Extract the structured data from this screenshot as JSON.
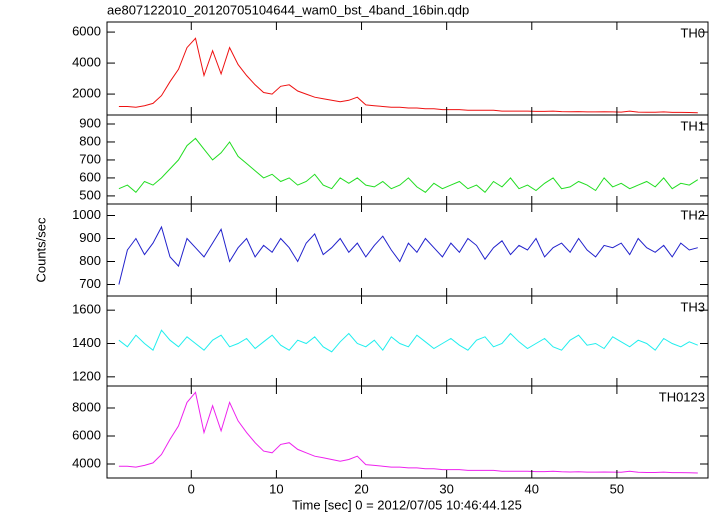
{
  "chart_data": {
    "type": "line",
    "title": "ae807122010_20120705104644_wam0_bst_4band_16bin.qdp",
    "xlabel": "Time [sec] 0 = 2012/07/05 10:46:44.125",
    "ylabel": "Counts/sec",
    "xlim": [
      -9.9,
      60.7
    ],
    "xticks": [
      0,
      10,
      20,
      30,
      40,
      50
    ],
    "x": [
      -8.5,
      -7.5,
      -6.5,
      -5.5,
      -4.5,
      -3.5,
      -2.5,
      -1.5,
      -0.5,
      0.5,
      1.5,
      2.5,
      3.5,
      4.5,
      5.5,
      6.5,
      7.5,
      8.5,
      9.5,
      10.5,
      11.5,
      12.5,
      13.5,
      14.5,
      15.5,
      16.5,
      17.5,
      18.5,
      19.5,
      20.5,
      21.5,
      22.5,
      23.5,
      24.5,
      25.5,
      26.5,
      27.5,
      28.5,
      29.5,
      30.5,
      31.5,
      32.5,
      33.5,
      34.5,
      35.5,
      36.5,
      37.5,
      38.5,
      39.5,
      40.5,
      41.5,
      42.5,
      43.5,
      44.5,
      45.5,
      46.5,
      47.5,
      48.5,
      49.5,
      50.5,
      51.5,
      52.5,
      53.5,
      54.5,
      55.5,
      56.5,
      57.5,
      58.5,
      59.5
    ],
    "series": [
      {
        "name": "TH0",
        "color": "#ee1111",
        "ylim": [
          650,
          6650
        ],
        "yticks": [
          2000,
          4000,
          6000
        ],
        "values": [
          1200,
          1200,
          1150,
          1250,
          1400,
          1900,
          2800,
          3600,
          5000,
          5600,
          3200,
          4800,
          3300,
          5000,
          3900,
          3200,
          2600,
          2100,
          2000,
          2500,
          2600,
          2200,
          2000,
          1800,
          1700,
          1600,
          1500,
          1600,
          1800,
          1300,
          1250,
          1200,
          1150,
          1150,
          1100,
          1100,
          1050,
          1050,
          1000,
          1000,
          1000,
          950,
          950,
          950,
          950,
          900,
          900,
          900,
          900,
          880,
          880,
          900,
          870,
          860,
          870,
          850,
          850,
          860,
          850,
          840,
          900,
          840,
          830,
          830,
          850,
          820,
          820,
          810,
          800
        ]
      },
      {
        "name": "TH1",
        "color": "#22dd22",
        "ylim": [
          455,
          950
        ],
        "yticks": [
          500,
          600,
          700,
          800,
          900
        ],
        "values": [
          540,
          560,
          520,
          580,
          560,
          600,
          650,
          700,
          780,
          820,
          760,
          700,
          740,
          800,
          720,
          680,
          640,
          600,
          620,
          580,
          600,
          560,
          580,
          620,
          560,
          540,
          600,
          570,
          600,
          560,
          550,
          580,
          540,
          560,
          600,
          550,
          520,
          570,
          540,
          560,
          580,
          540,
          560,
          520,
          580,
          550,
          600,
          540,
          560,
          530,
          570,
          600,
          540,
          550,
          580,
          560,
          530,
          600,
          550,
          570,
          540,
          560,
          580,
          550,
          600,
          540,
          570,
          560,
          590
        ]
      },
      {
        "name": "TH2",
        "color": "#2222cc",
        "ylim": [
          650,
          1050
        ],
        "yticks": [
          700,
          800,
          900,
          1000
        ],
        "values": [
          700,
          850,
          900,
          830,
          880,
          950,
          820,
          780,
          900,
          860,
          820,
          880,
          940,
          800,
          860,
          900,
          820,
          870,
          840,
          900,
          860,
          800,
          880,
          920,
          830,
          860,
          900,
          840,
          880,
          820,
          870,
          910,
          850,
          800,
          880,
          840,
          900,
          860,
          820,
          880,
          840,
          900,
          870,
          810,
          860,
          890,
          830,
          870,
          850,
          900,
          820,
          860,
          880,
          840,
          900,
          850,
          820,
          870,
          860,
          880,
          830,
          900,
          860,
          840,
          870,
          820,
          880,
          850,
          860
        ]
      },
      {
        "name": "TH3",
        "color": "#22eeee",
        "ylim": [
          1145,
          1685
        ],
        "yticks": [
          1200,
          1400,
          1600
        ],
        "values": [
          1420,
          1380,
          1450,
          1400,
          1360,
          1480,
          1420,
          1380,
          1440,
          1400,
          1360,
          1420,
          1450,
          1380,
          1400,
          1430,
          1370,
          1410,
          1450,
          1390,
          1360,
          1420,
          1400,
          1440,
          1380,
          1350,
          1410,
          1460,
          1400,
          1380,
          1420,
          1360,
          1440,
          1400,
          1380,
          1450,
          1410,
          1370,
          1400,
          1430,
          1390,
          1360,
          1420,
          1440,
          1380,
          1400,
          1460,
          1410,
          1370,
          1400,
          1430,
          1380,
          1360,
          1420,
          1450,
          1390,
          1400,
          1370,
          1440,
          1410,
          1380,
          1420,
          1400,
          1360,
          1430,
          1400,
          1380,
          1410,
          1390
        ]
      },
      {
        "name": "TH0123",
        "color": "#ee22ee",
        "ylim": [
          3000,
          9570
        ],
        "yticks": [
          4000,
          6000,
          8000
        ],
        "values": [
          3840,
          3840,
          3780,
          3900,
          4080,
          4680,
          5760,
          6720,
          8400,
          9120,
          6240,
          8160,
          6360,
          8400,
          7080,
          6240,
          5520,
          4920,
          4800,
          5400,
          5520,
          5040,
          4800,
          4560,
          4440,
          4320,
          4200,
          4320,
          4560,
          3960,
          3900,
          3840,
          3780,
          3780,
          3720,
          3720,
          3660,
          3660,
          3600,
          3600,
          3600,
          3540,
          3540,
          3540,
          3540,
          3480,
          3480,
          3480,
          3480,
          3456,
          3456,
          3480,
          3444,
          3432,
          3444,
          3420,
          3420,
          3432,
          3420,
          3408,
          3480,
          3408,
          3396,
          3396,
          3420,
          3384,
          3384,
          3372,
          3360
        ]
      }
    ]
  }
}
